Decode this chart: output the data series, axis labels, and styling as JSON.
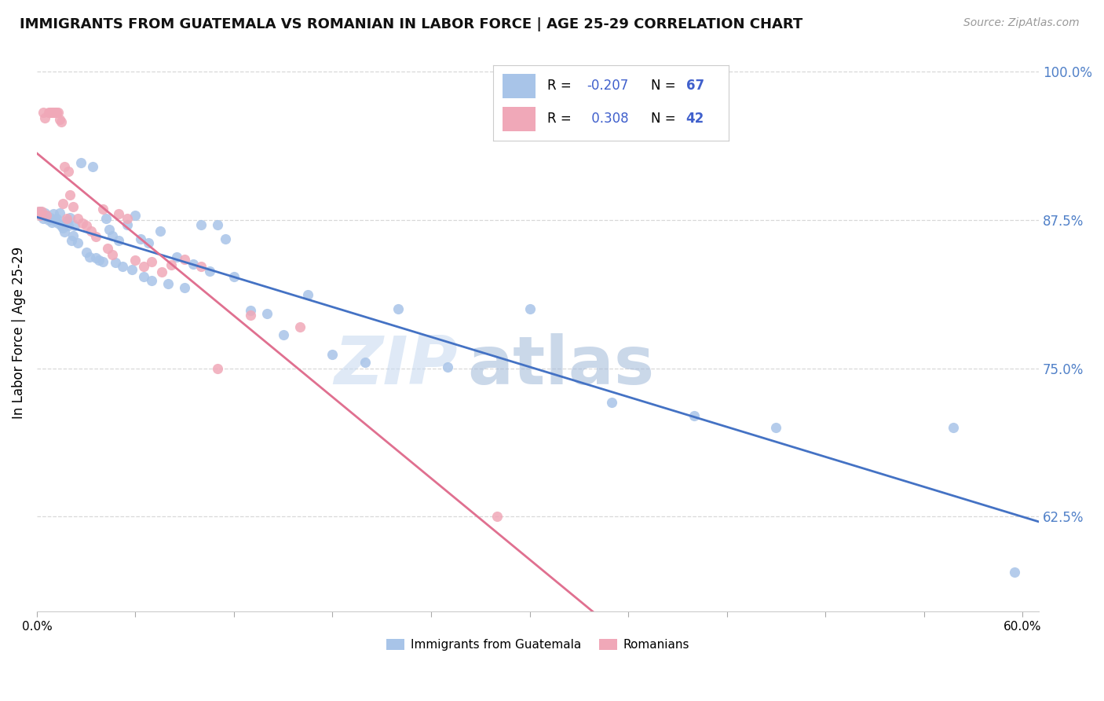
{
  "title": "IMMIGRANTS FROM GUATEMALA VS ROMANIAN IN LABOR FORCE | AGE 25-29 CORRELATION CHART",
  "source": "Source: ZipAtlas.com",
  "ylabel": "In Labor Force | Age 25-29",
  "watermark_zip": "ZIP",
  "watermark_atlas": "atlas",
  "blue_r": "-0.207",
  "blue_n": "67",
  "pink_r": "0.308",
  "pink_n": "42",
  "blue_fill": "#a8c4e8",
  "pink_fill": "#f0a8b8",
  "blue_line": "#4472c4",
  "pink_line": "#e07090",
  "bg_color": "#ffffff",
  "grid_color": "#d8d8d8",
  "right_tick_color": "#5080c8",
  "xlim_min": 0.0,
  "xlim_max": 0.61,
  "ylim_min": 0.545,
  "ylim_max": 1.015,
  "yticks": [
    0.625,
    0.75,
    0.875,
    1.0
  ],
  "ytick_labels": [
    "62.5%",
    "75.0%",
    "87.5%",
    "100.0%"
  ],
  "blue_x": [
    0.002,
    0.003,
    0.004,
    0.005,
    0.006,
    0.007,
    0.008,
    0.009,
    0.01,
    0.011,
    0.012,
    0.013,
    0.014,
    0.015,
    0.016,
    0.017,
    0.018,
    0.019,
    0.02,
    0.021,
    0.022,
    0.023,
    0.025,
    0.027,
    0.03,
    0.032,
    0.034,
    0.036,
    0.038,
    0.04,
    0.042,
    0.044,
    0.046,
    0.048,
    0.05,
    0.052,
    0.055,
    0.058,
    0.06,
    0.063,
    0.065,
    0.068,
    0.07,
    0.075,
    0.08,
    0.085,
    0.09,
    0.095,
    0.1,
    0.105,
    0.11,
    0.115,
    0.12,
    0.13,
    0.14,
    0.15,
    0.165,
    0.18,
    0.2,
    0.22,
    0.25,
    0.3,
    0.35,
    0.4,
    0.45,
    0.558,
    0.595
  ],
  "blue_y": [
    0.882,
    0.879,
    0.876,
    0.881,
    0.878,
    0.875,
    0.877,
    0.873,
    0.88,
    0.874,
    0.876,
    0.872,
    0.881,
    0.87,
    0.868,
    0.865,
    0.874,
    0.87,
    0.877,
    0.858,
    0.862,
    0.87,
    0.856,
    0.923,
    0.848,
    0.844,
    0.92,
    0.843,
    0.841,
    0.84,
    0.876,
    0.867,
    0.862,
    0.839,
    0.858,
    0.836,
    0.871,
    0.833,
    0.879,
    0.859,
    0.827,
    0.856,
    0.824,
    0.866,
    0.821,
    0.844,
    0.818,
    0.838,
    0.871,
    0.832,
    0.871,
    0.859,
    0.827,
    0.799,
    0.796,
    0.778,
    0.812,
    0.762,
    0.755,
    0.8,
    0.751,
    0.8,
    0.721,
    0.71,
    0.7,
    0.7,
    0.578
  ],
  "pink_x": [
    0.001,
    0.002,
    0.003,
    0.004,
    0.005,
    0.006,
    0.007,
    0.008,
    0.009,
    0.01,
    0.011,
    0.012,
    0.013,
    0.014,
    0.015,
    0.016,
    0.017,
    0.018,
    0.019,
    0.02,
    0.022,
    0.025,
    0.028,
    0.03,
    0.033,
    0.036,
    0.04,
    0.043,
    0.046,
    0.05,
    0.055,
    0.06,
    0.065,
    0.07,
    0.076,
    0.082,
    0.09,
    0.1,
    0.11,
    0.13,
    0.16,
    0.28
  ],
  "pink_y": [
    0.882,
    0.879,
    0.882,
    0.966,
    0.961,
    0.879,
    0.966,
    0.966,
    0.966,
    0.966,
    0.966,
    0.966,
    0.966,
    0.96,
    0.958,
    0.889,
    0.92,
    0.876,
    0.916,
    0.896,
    0.886,
    0.876,
    0.872,
    0.87,
    0.866,
    0.861,
    0.884,
    0.851,
    0.846,
    0.88,
    0.876,
    0.841,
    0.836,
    0.84,
    0.831,
    0.837,
    0.842,
    0.836,
    0.75,
    0.795,
    0.785,
    0.625
  ]
}
